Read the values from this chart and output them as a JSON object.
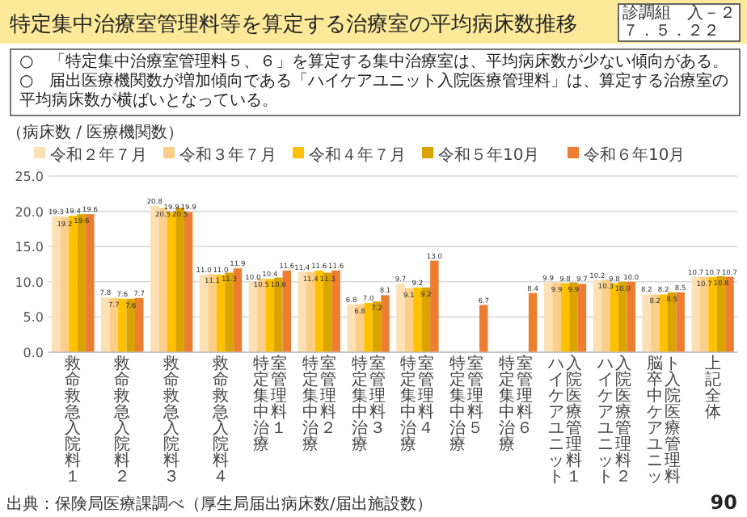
{
  "chart_data": {
    "type": "bar",
    "title": "特定集中治療室管理料等を算定する治療室の平均病床数推移",
    "ylabel": "（病床数 / 医療機関数）",
    "annotations": [
      "○　「特定集中治療室管理料５、６」を算定する集中治療室は、平均病床数が少ない傾向がある。",
      "○　届出医療機関数が増加傾向である「ハイケアユニット入院医療管理料」は、算定する治療室の平均病床数が横ばいとなっている。",
      "診調組　入－２",
      "７．５．２２",
      "出典：保険局医療課調べ（厚生局届出病床数/届出施設数）",
      "90"
    ],
    "categories": [
      "救命救急入院料１",
      "救命救急入院料２",
      "救命救急入院料３",
      "救命救急入院料４",
      "特定集中治療室管理料１",
      "特定集中治療室管理料２",
      "特定集中治療室管理料３",
      "特定集中治療室管理料４",
      "特定集中治療室管理料５",
      "特定集中治療室管理料６",
      "ハイケアユニット入院医療管理料１",
      "ハイケアユニット入院医療管理料２",
      "脳卒中ケアユニット入院医療管理料",
      "上記全体"
    ],
    "series": [
      {
        "name": "令和２年７月",
        "color": "#fde0b4",
        "values": [
          19.3,
          7.8,
          20.8,
          11.0,
          10.0,
          11.4,
          6.8,
          9.7,
          null,
          null,
          9.9,
          10.2,
          8.2,
          10.7
        ],
        "value_labels": [
          "19.3",
          "7.8",
          "20.8",
          "11.0",
          "10.0",
          "11.4",
          "6.8",
          "9.7",
          null,
          null,
          "9.9",
          "10.2",
          "8.2",
          "10.7"
        ]
      },
      {
        "name": "令和３年７月",
        "color": "#fbcf8a",
        "values": [
          19.2,
          7.7,
          20.5,
          11.1,
          10.5,
          11.4,
          6.8,
          9.1,
          null,
          null,
          9.9,
          10.3,
          8.2,
          10.7
        ],
        "value_labels": [
          "19.2",
          "7.7",
          "20.5",
          "11.1",
          "10.5",
          "11.4",
          "6.8",
          "9.1",
          null,
          null,
          "9.9",
          "10.3",
          "8.2",
          "10.7"
        ]
      },
      {
        "name": "令和４年７月",
        "color": "#ffc000",
        "values": [
          19.4,
          7.6,
          19.9,
          11.0,
          10.4,
          11.6,
          7.0,
          9.2,
          null,
          null,
          9.8,
          9.8,
          8.2,
          10.7
        ],
        "value_labels": [
          "19.4",
          "7.6",
          "19.9",
          "11.0",
          "10.4",
          "11.6",
          "7.0",
          "9.2",
          null,
          null,
          "9.8",
          "9.8",
          "8.2",
          "10.7"
        ]
      },
      {
        "name": "令和５年10月",
        "color": "#d9a300",
        "values": [
          19.6,
          7.6,
          20.5,
          11.3,
          10.6,
          11.3,
          7.2,
          9.2,
          null,
          null,
          9.9,
          10.0,
          8.5,
          10.8
        ],
        "value_labels": [
          "19.6",
          "7.6",
          "20.5",
          "11.3",
          "10.6",
          "11.3",
          "7.2",
          "9.2",
          null,
          null,
          "9.9",
          "10.0",
          "8.5",
          "10.8"
        ]
      },
      {
        "name": "令和６年10月",
        "color": "#ed7d31",
        "values": [
          19.6,
          7.7,
          19.9,
          11.9,
          11.6,
          11.6,
          8.1,
          13.0,
          6.7,
          8.4,
          9.7,
          10.0,
          8.5,
          10.7
        ],
        "value_labels": [
          "19.6",
          "7.7",
          "19.9",
          "11.9",
          "11.6",
          "11.6",
          "8.1",
          "13.0",
          "6.7",
          "8.4",
          "9.7",
          "10.0",
          "8.5",
          "10.7"
        ]
      }
    ],
    "ylim": [
      0,
      25
    ],
    "yticks": [
      {
        "value": 0,
        "label": "0.0"
      },
      {
        "value": 5,
        "label": "5.0"
      },
      {
        "value": 10,
        "label": "10.0"
      },
      {
        "value": 15,
        "label": "15.0"
      },
      {
        "value": 20,
        "label": "20.0"
      },
      {
        "value": 25,
        "label": "25.0"
      }
    ],
    "grid": "y",
    "legend": "top"
  }
}
